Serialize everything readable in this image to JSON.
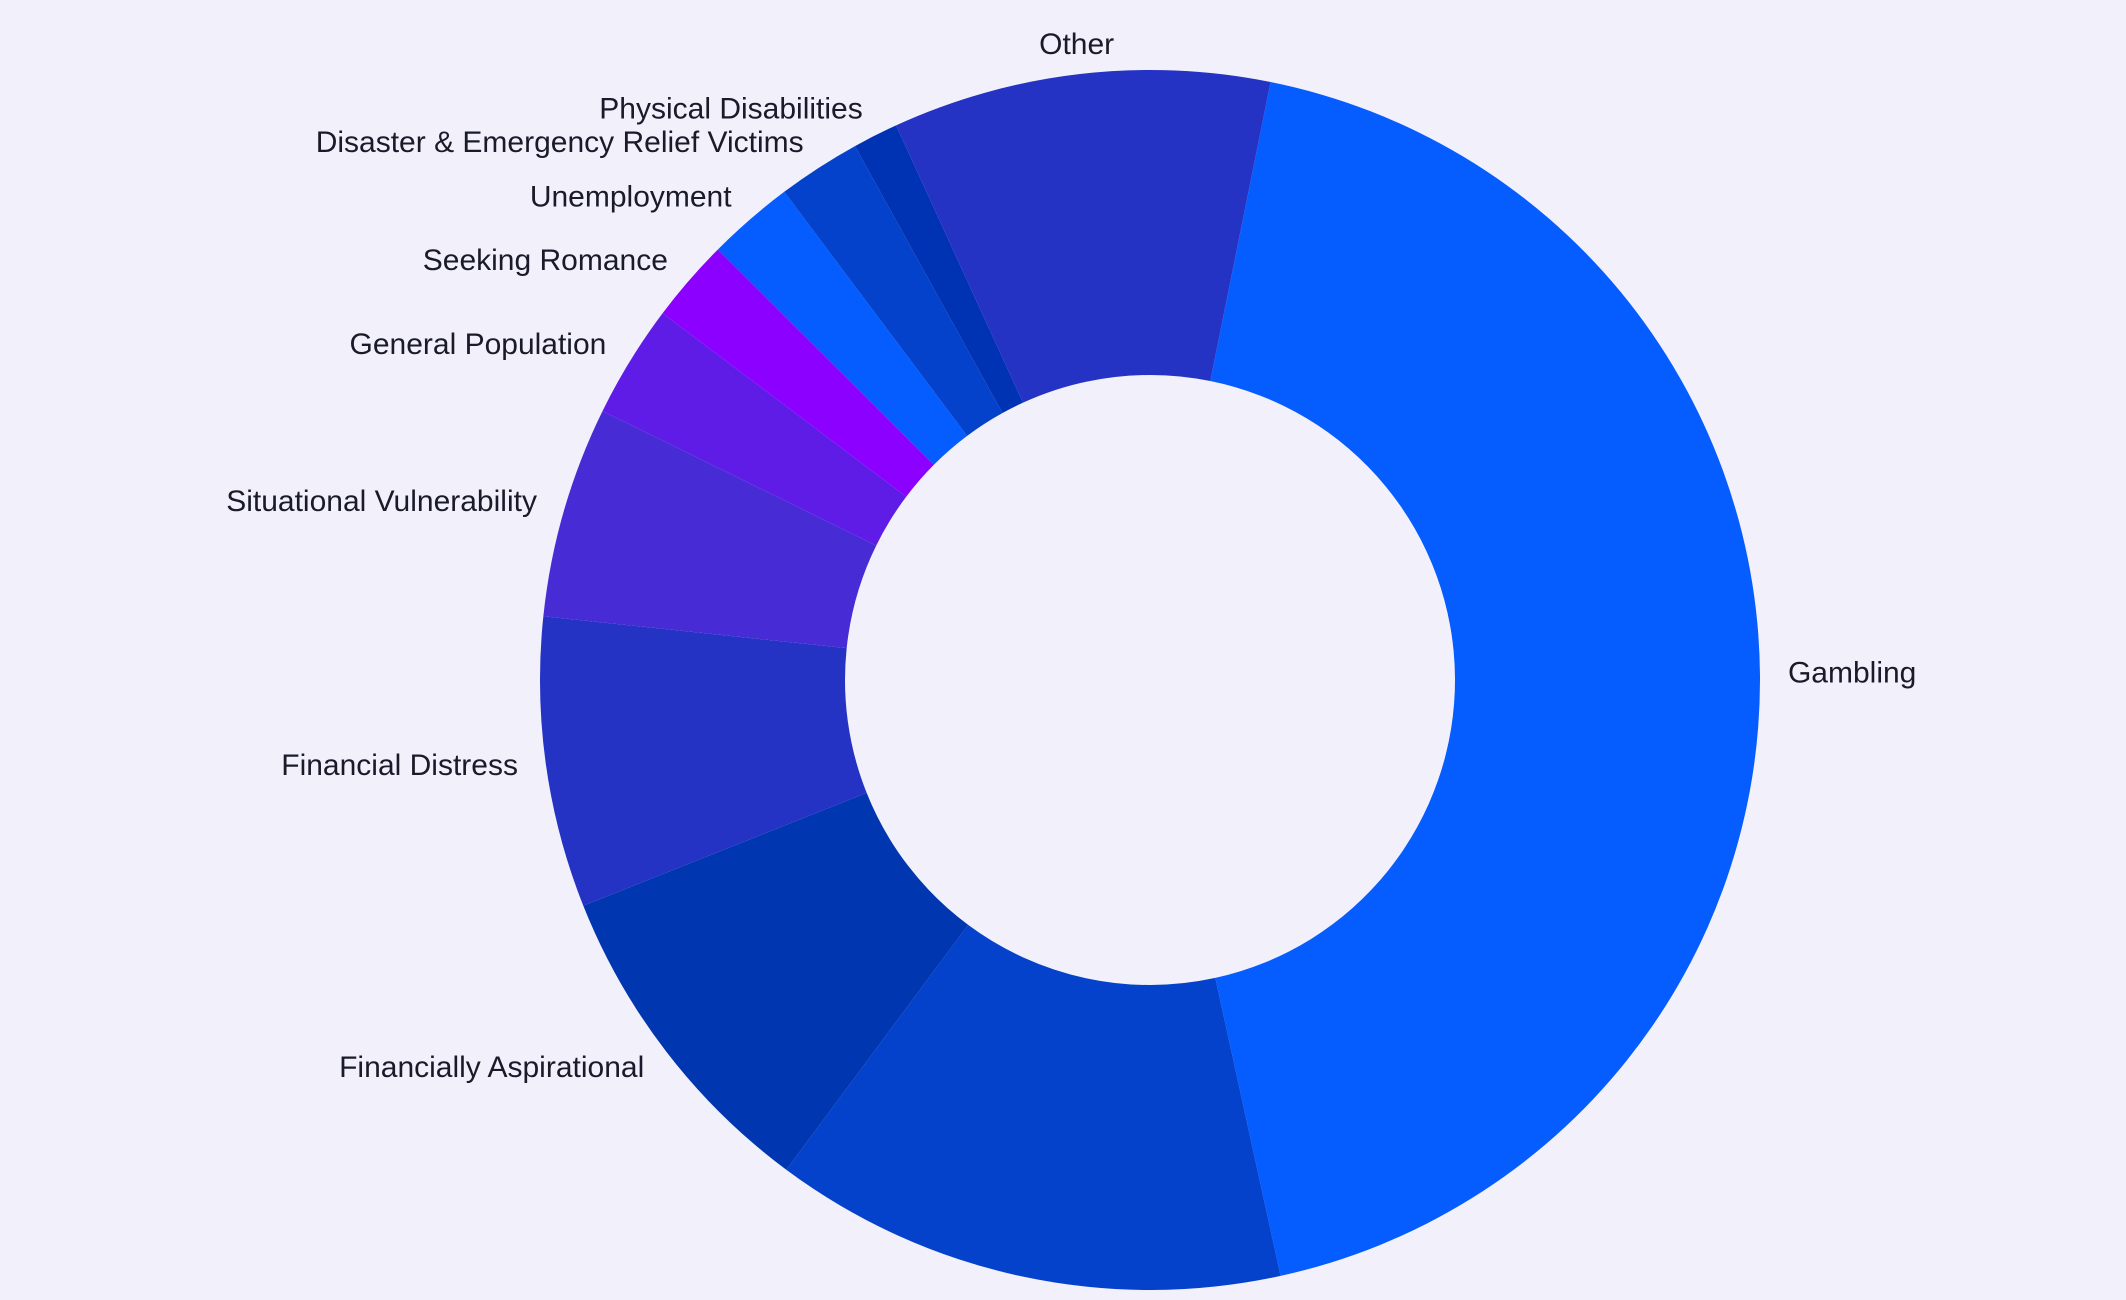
{
  "chart_data": {
    "type": "pie",
    "variant": "donut",
    "title": "",
    "categories": [
      "Gambling",
      "",
      "Financially Aspirational",
      "Financial Distress",
      "Situational Vulnerability",
      "General Population",
      "Seeking Romance",
      "Unemployment",
      "Disaster & Emergency Relief Victims",
      "Physical Disabilities",
      "Other"
    ],
    "values": [
      43.4,
      13.6,
      8.8,
      7.7,
      5.6,
      3.0,
      2.2,
      2.3,
      2.2,
      1.2,
      10.0
    ],
    "colors": [
      "#055cff",
      "#0442cc",
      "#0036b0",
      "#2533c4",
      "#472cd6",
      "#5e1ce6",
      "#8c00ff",
      "#055cff",
      "#0442cc",
      "#0033b3",
      "#2533c4"
    ],
    "start_angle_deg": 11.4,
    "direction": "clockwise",
    "legend": "none",
    "background": "#f2f0fa"
  }
}
